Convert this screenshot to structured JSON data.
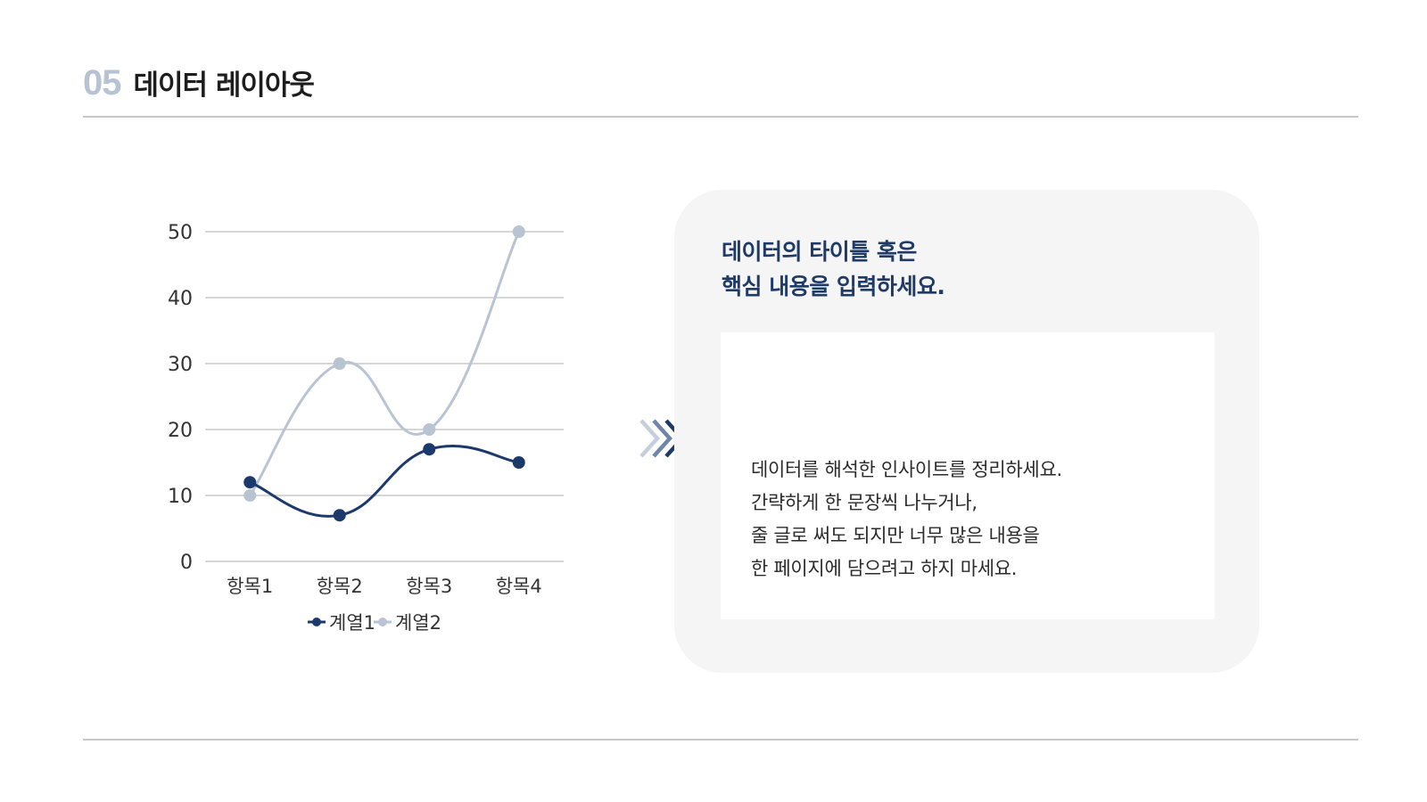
{
  "header": {
    "number": "05",
    "title": "데이터 레이아웃"
  },
  "colors": {
    "series1": "#1b3a6b",
    "series2": "#b9c4d3",
    "grid": "#c8c8c8",
    "accent_navy": "#1f3a66"
  },
  "panel": {
    "title_lines": [
      "데이터의 타이틀 혹은",
      "핵심 내용을 입력하세요."
    ],
    "body_lines": [
      "데이터를 해석한 인사이트를 정리하세요.",
      "간략하게 한 문장씩 나누거나,",
      "줄 글로 써도 되지만 너무 많은 내용을",
      "한 페이지에 담으려고 하지 마세요."
    ]
  },
  "icons": {
    "arrow": "triple-chevron-right-icon"
  },
  "chart_data": {
    "type": "line",
    "smooth": true,
    "categories": [
      "항목1",
      "항목2",
      "항목3",
      "항목4"
    ],
    "series": [
      {
        "name": "계열1",
        "values": [
          12,
          7,
          17,
          15
        ],
        "color": "#1b3a6b"
      },
      {
        "name": "계열2",
        "values": [
          10,
          30,
          20,
          50
        ],
        "color": "#b9c4d3"
      }
    ],
    "ylim": [
      0,
      50
    ],
    "yticks": [
      0,
      10,
      20,
      30,
      40,
      50
    ],
    "grid": true,
    "legend": "bottom"
  }
}
